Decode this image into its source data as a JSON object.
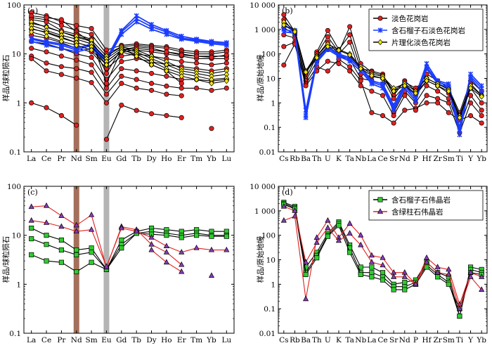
{
  "colors": {
    "pale_granite": "#e02020",
    "garnet_pale_granite": "#1a3cff",
    "schist_pale_granite": "#000000",
    "garnet_pegmatite": "#000000",
    "beryl_pegmatite": "#e02020",
    "nd_band": "#a4705c",
    "eu_band": "#b4b4b4"
  },
  "chart_data": [
    {
      "panel": "(a)",
      "type": "line",
      "y_scale": "log",
      "ylim": [
        0.1,
        100
      ],
      "ylabel": "样品/球粒陨石",
      "yticks": [
        "0.1",
        "1",
        "10",
        "100"
      ],
      "categories": [
        "La",
        "Ce",
        "Pr",
        "Nd",
        "Sm",
        "Eu",
        "Gd",
        "Tb",
        "Dy",
        "Ho",
        "Er",
        "Tm",
        "Yb",
        "Lu"
      ],
      "highlight_bands": [
        "Nd",
        "Eu"
      ],
      "series": [
        {
          "group": "pale",
          "values": [
            70,
            60,
            45,
            38,
            33,
            12,
            15,
            16,
            15,
            14,
            12,
            11,
            11,
            12
          ]
        },
        {
          "group": "pale",
          "values": [
            55,
            50,
            38,
            30,
            25,
            10,
            14,
            15,
            14,
            13,
            11,
            10,
            10,
            11
          ]
        },
        {
          "group": "pale",
          "values": [
            42,
            36,
            28,
            22,
            18,
            7,
            12,
            14,
            13,
            11,
            10,
            9,
            9,
            9
          ]
        },
        {
          "group": "pale",
          "values": [
            32,
            28,
            22,
            17,
            14,
            6,
            11,
            12,
            11,
            10,
            9,
            8,
            8,
            8
          ]
        },
        {
          "group": "pale",
          "values": [
            24,
            21,
            17,
            13,
            11,
            5,
            9,
            10,
            9,
            8,
            7,
            6.5,
            6,
            6.5
          ]
        },
        {
          "group": "pale",
          "values": [
            18,
            16,
            13,
            10,
            8.5,
            3,
            7,
            8,
            7,
            6,
            5.5,
            5,
            4.5,
            5
          ]
        },
        {
          "group": "pale",
          "values": [
            13,
            11,
            9,
            7.5,
            6,
            2,
            5,
            4.5,
            4,
            3.5,
            3,
            3,
            2.8,
            3
          ]
        },
        {
          "group": "pale",
          "values": [
            9,
            6.5,
            5.5,
            5,
            4.2,
            1.5,
            3.5,
            3,
            2.5,
            2.2,
            2,
            2,
            1.8,
            2
          ]
        },
        {
          "group": "pale",
          "values": [
            8,
            4.5,
            3.8,
            3.2,
            2.6,
            1,
            2.5,
            2,
            1.8,
            1.5,
            1.4,
            null,
            null,
            null
          ]
        },
        {
          "group": "pale",
          "values": [
            1,
            0.8,
            0.55,
            0.35,
            null,
            0.18,
            0.9,
            0.7,
            0.6,
            0.55,
            0.5,
            null,
            0.3,
            null
          ]
        },
        {
          "group": "pale",
          "values": [
            60,
            55,
            50,
            28,
            17,
            4,
            13,
            9,
            6,
            4.5,
            2.5,
            null,
            null,
            null
          ]
        },
        {
          "group": "pale",
          "values": [
            50,
            45,
            30,
            25,
            20,
            2.5,
            12,
            13,
            12,
            11,
            9.5,
            9,
            8.5,
            9.5
          ]
        },
        {
          "group": "garnet",
          "values": [
            21,
            18,
            16,
            13,
            16,
            8,
            30,
            60,
            40,
            30,
            23,
            20,
            18,
            17
          ]
        },
        {
          "group": "garnet",
          "values": [
            20,
            17,
            15,
            12,
            15,
            7.5,
            28,
            52,
            36,
            28,
            21,
            19,
            17,
            16
          ]
        },
        {
          "group": "garnet",
          "values": [
            18,
            15,
            13,
            11,
            13,
            7,
            25,
            45,
            32,
            25,
            20,
            18,
            16,
            15
          ]
        },
        {
          "group": "schist",
          "values": [
            45,
            35,
            28,
            23,
            19,
            9,
            14,
            12,
            9,
            7,
            5,
            4.5,
            4,
            4.5
          ]
        },
        {
          "group": "schist",
          "values": [
            38,
            30,
            24,
            20,
            16,
            8,
            13,
            11,
            8,
            6,
            4.5,
            4,
            3.5,
            3.8
          ]
        },
        {
          "group": "schist",
          "values": [
            33,
            27,
            21,
            17,
            14,
            7,
            12,
            10,
            7,
            5,
            4,
            3.5,
            3,
            3.2
          ]
        },
        {
          "group": "schist",
          "values": [
            28,
            23,
            18,
            15,
            12,
            6,
            11,
            9,
            6,
            4.5,
            3.5,
            3,
            2.5,
            2.8
          ]
        }
      ]
    },
    {
      "panel": "(b)",
      "type": "line",
      "y_scale": "log",
      "ylim": [
        0.01,
        10000
      ],
      "ylabel": "样品/原始地幔",
      "yticks": [
        "0.01",
        "0.1",
        "1",
        "10",
        "100",
        "1 000",
        "10 000"
      ],
      "categories": [
        "Cs",
        "Rb",
        "Ba",
        "Th",
        "U",
        "K",
        "Ta",
        "Nb",
        "La",
        "Ce",
        "Sr",
        "Nd",
        "P",
        "Hf",
        "Zr",
        "Sm",
        "Ti",
        "Y",
        "Yb"
      ],
      "legend": [
        "淡色花岗岩",
        "含石榴子石淡色花岗岩",
        "片理化淡色花岗岩"
      ],
      "legend_position": "top-right",
      "series": [
        {
          "group": "pale",
          "values": [
            4000,
            800,
            15,
            120,
            900,
            150,
            600,
            25,
            20,
            15,
            2,
            8,
            3,
            15,
            8,
            4,
            0.4,
            8,
            3
          ]
        },
        {
          "group": "pale",
          "values": [
            2500,
            700,
            20,
            100,
            500,
            120,
            1300,
            40,
            18,
            13,
            3,
            7,
            4,
            10,
            6,
            3.5,
            0.3,
            6,
            2
          ]
        },
        {
          "group": "pale",
          "values": [
            1200,
            600,
            10,
            80,
            300,
            100,
            300,
            15,
            12,
            10,
            1.5,
            5,
            2,
            8,
            5,
            2.5,
            0.2,
            4,
            1
          ]
        },
        {
          "group": "pale",
          "values": [
            600,
            450,
            8,
            50,
            150,
            80,
            60,
            10,
            8,
            6,
            0.4,
            3,
            1,
            5,
            3,
            1.5,
            0.1,
            2,
            0.5
          ]
        },
        {
          "group": "pale",
          "values": [
            200,
            300,
            6,
            30,
            20,
            60,
            30,
            8,
            0.4,
            0.3,
            0.15,
            0.5,
            0.6,
            1,
            1,
            0.4,
            0.2,
            0.3,
            0.15
          ]
        },
        {
          "group": "pale",
          "values": [
            35,
            250,
            5,
            20,
            50,
            40,
            20,
            5,
            3,
            2,
            0.3,
            2,
            0.5,
            2,
            1.5,
            1,
            0.06,
            1,
            0.3
          ]
        },
        {
          "group": "garnet",
          "values": [
            1500,
            900,
            0.5,
            60,
            200,
            100,
            70,
            30,
            8,
            6,
            0.8,
            6,
            2,
            40,
            8,
            6,
            0.1,
            15,
            5
          ]
        },
        {
          "group": "garnet",
          "values": [
            1000,
            800,
            0.3,
            50,
            180,
            90,
            60,
            25,
            7,
            5,
            0.6,
            5,
            1.5,
            30,
            7,
            5,
            0.08,
            12,
            4
          ]
        },
        {
          "group": "garnet",
          "values": [
            800,
            700,
            0.25,
            45,
            150,
            80,
            50,
            20,
            6,
            4,
            0.5,
            4,
            1.2,
            25,
            6,
            4,
            0.05,
            10,
            3
          ]
        },
        {
          "group": "schist",
          "values": [
            2000,
            900,
            20,
            80,
            250,
            150,
            100,
            30,
            15,
            12,
            4,
            6,
            3,
            10,
            6,
            3.5,
            0.3,
            5,
            2
          ]
        },
        {
          "group": "schist",
          "values": [
            1500,
            800,
            18,
            70,
            200,
            140,
            90,
            25,
            13,
            10,
            3,
            5,
            2.5,
            8,
            5,
            3,
            0.25,
            4,
            1.8
          ]
        }
      ]
    },
    {
      "panel": "(c)",
      "type": "line",
      "y_scale": "log",
      "ylim": [
        0.1,
        100
      ],
      "ylabel": "样品/球粒陨石",
      "yticks": [
        "0.1",
        "1",
        "10",
        "100"
      ],
      "categories": [
        "La",
        "Ce",
        "Pr",
        "Nd",
        "Sm",
        "Eu",
        "Gd",
        "Tb",
        "Dy",
        "Ho",
        "Er",
        "Tm",
        "Yb",
        "Lu"
      ],
      "highlight_bands": [
        "Nd",
        "Eu"
      ],
      "series": [
        {
          "group": "garnet_peg",
          "values": [
            14,
            10,
            8,
            5,
            5.5,
            2,
            8,
            12,
            14,
            13,
            12,
            13,
            12,
            12
          ]
        },
        {
          "group": "garnet_peg",
          "values": [
            8.5,
            6.5,
            5,
            4,
            4.5,
            2,
            6.5,
            11,
            12,
            11,
            10,
            11,
            10,
            10
          ]
        },
        {
          "group": "garnet_peg",
          "values": [
            4,
            3,
            2.8,
            1.8,
            2.8,
            2,
            5.5,
            11,
            10.5,
            10,
            9,
            10,
            9.5,
            9.5
          ]
        },
        {
          "group": "beryl_peg",
          "values": [
            38,
            40,
            25,
            16,
            26,
            2.2,
            15,
            13,
            6.5,
            4.5,
            2.5,
            null,
            null,
            null
          ]
        },
        {
          "group": "beryl_peg",
          "values": [
            20,
            18,
            15,
            12,
            13,
            2.3,
            14,
            12,
            9,
            6,
            4.5,
            5.5,
            5,
            5
          ]
        },
        {
          "group": "beryl_peg",
          "values": [
            null,
            null,
            null,
            null,
            null,
            null,
            null,
            null,
            5,
            2.8,
            1.8,
            null,
            1.5,
            null
          ]
        }
      ]
    },
    {
      "panel": "(d)",
      "type": "line",
      "y_scale": "log",
      "ylim": [
        0.01,
        10000
      ],
      "ylabel": "样品/原始地幔",
      "yticks": [
        "0.01",
        "0.1",
        "1",
        "10",
        "100",
        "1 000",
        "10 000"
      ],
      "categories": [
        "Cs",
        "Rb",
        "Ba",
        "Th",
        "U",
        "K",
        "Ta",
        "Nb",
        "La",
        "Ce",
        "Sr",
        "Nd",
        "P",
        "Hf",
        "Zr",
        "Sm",
        "Ti",
        "Y",
        "Yb"
      ],
      "legend": [
        "含石榴子石伟晶岩",
        "含绿柱石伟晶岩"
      ],
      "legend_position": "top-right",
      "series": [
        {
          "group": "garnet_peg",
          "values": [
            2200,
            1500,
            5,
            20,
            120,
            350,
            40,
            5,
            5,
            3,
            1,
            1.2,
            1.5,
            8,
            3,
            2,
            0.05,
            5,
            4
          ]
        },
        {
          "group": "garnet_peg",
          "values": [
            2000,
            1300,
            3,
            15,
            100,
            300,
            30,
            3,
            3,
            2,
            0.8,
            0.8,
            1.2,
            6,
            2.5,
            1.2,
            0.05,
            4,
            3
          ]
        },
        {
          "group": "garnet_peg",
          "values": [
            1800,
            1200,
            2.5,
            12,
            90,
            250,
            20,
            2.5,
            2,
            1.5,
            0.6,
            0.6,
            1,
            5,
            2,
            1,
            0.1,
            3,
            2.5
          ]
        },
        {
          "group": "beryl_peg",
          "values": [
            400,
            600,
            0.25,
            80,
            400,
            80,
            300,
            100,
            15,
            12,
            3,
            3,
            1,
            12,
            5,
            4,
            0.15,
            3,
            2
          ]
        },
        {
          "group": "beryl_peg",
          "values": [
            1500,
            1000,
            8,
            50,
            200,
            60,
            120,
            40,
            8,
            6,
            2,
            2,
            1,
            8,
            3,
            2.5,
            0.1,
            2,
            0.6
          ]
        }
      ]
    }
  ],
  "legend_labels": {
    "b1": "淡色花岗岩",
    "b2": "含石榴子石淡色花岗岩",
    "b3": "片理化淡色花岗岩",
    "d1": "含石榴子石伟晶岩",
    "d2": "含绿柱石伟晶岩"
  }
}
